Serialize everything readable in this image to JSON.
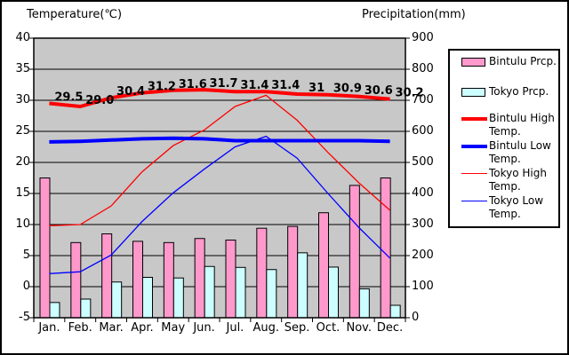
{
  "chart_data": {
    "type": "combo (bar + line)",
    "left_axis": {
      "title": "Temperature(℃)",
      "min": -5,
      "max": 40,
      "tick_step": 5,
      "ticks": [
        "40",
        "35",
        "30",
        "25",
        "20",
        "15",
        "10",
        "5",
        "0",
        "-5"
      ]
    },
    "right_axis": {
      "title": "Precipitation(mm)",
      "min": 0,
      "max": 900,
      "tick_step": 100,
      "ticks": [
        "900",
        "800",
        "700",
        "600",
        "500",
        "400",
        "300",
        "200",
        "100",
        "0"
      ]
    },
    "categories": [
      "Jan.",
      "Feb.",
      "Mar.",
      "Apr.",
      "May",
      "Jun.",
      "Jul.",
      "Aug.",
      "Sep.",
      "Oct.",
      "Nov.",
      "Dec."
    ],
    "grid": "on",
    "plot_bg": "#c8c8c8",
    "grid_color": "#000000",
    "legend_position": "right",
    "series": [
      {
        "name": "Bintulu Prcp.",
        "render": "bar",
        "axis": "right",
        "color": "#ff99cc",
        "values": [
          450,
          242,
          270,
          246,
          242,
          255,
          250,
          288,
          294,
          338,
          426,
          450
        ]
      },
      {
        "name": "Tokyo Prcp.",
        "render": "bar",
        "axis": "right",
        "color": "#ccffff",
        "values": [
          49,
          60,
          115,
          130,
          128,
          165,
          162,
          155,
          209,
          163,
          93,
          40
        ]
      },
      {
        "name": "Bintulu High Temp.",
        "render": "line",
        "axis": "left",
        "color": "#ff0000",
        "stroke_width": 4,
        "values": [
          29.5,
          29.0,
          30.4,
          31.2,
          31.6,
          31.7,
          31.4,
          31.4,
          31.0,
          30.9,
          30.6,
          30.2
        ],
        "data_labels": [
          "29.5",
          "29.0",
          "30.4",
          "31.2",
          "31.6",
          "31.7",
          "31.4",
          "31.4",
          "31",
          "30.9",
          "30.6",
          "30.2"
        ]
      },
      {
        "name": "Bintulu Low Temp.",
        "render": "line",
        "axis": "left",
        "color": "#0000ff",
        "stroke_width": 4,
        "values": [
          23.3,
          23.4,
          23.6,
          23.8,
          23.9,
          23.8,
          23.5,
          23.5,
          23.5,
          23.5,
          23.5,
          23.4
        ]
      },
      {
        "name": "Tokyo High Temp.",
        "render": "line",
        "axis": "left",
        "color": "#ff0000",
        "stroke_width": 1.3,
        "values": [
          9.8,
          10.0,
          13.0,
          18.5,
          22.7,
          25.2,
          29.0,
          30.8,
          26.8,
          21.6,
          16.7,
          12.3
        ]
      },
      {
        "name": "Tokyo Low Temp.",
        "render": "line",
        "axis": "left",
        "color": "#0000ff",
        "stroke_width": 1.3,
        "values": [
          2.1,
          2.4,
          5.1,
          10.5,
          15.1,
          18.9,
          22.5,
          24.2,
          20.7,
          15.0,
          9.5,
          4.6
        ]
      }
    ]
  },
  "legend": {
    "items": [
      {
        "label": "Bintulu Prcp.",
        "marker": "swatch",
        "color": "#ff99cc"
      },
      {
        "label": "Tokyo Prcp.",
        "marker": "swatch",
        "color": "#ccffff"
      },
      {
        "label": "Bintulu High Temp.",
        "marker": "thick-line",
        "color": "#ff0000"
      },
      {
        "label": "Bintulu Low Temp.",
        "marker": "thick-line",
        "color": "#0000ff"
      },
      {
        "label": "Tokyo High Temp.",
        "marker": "thin-line",
        "color": "#ff0000"
      },
      {
        "label": "Tokyo Low Temp.",
        "marker": "thin-line",
        "color": "#0000ff"
      }
    ]
  }
}
